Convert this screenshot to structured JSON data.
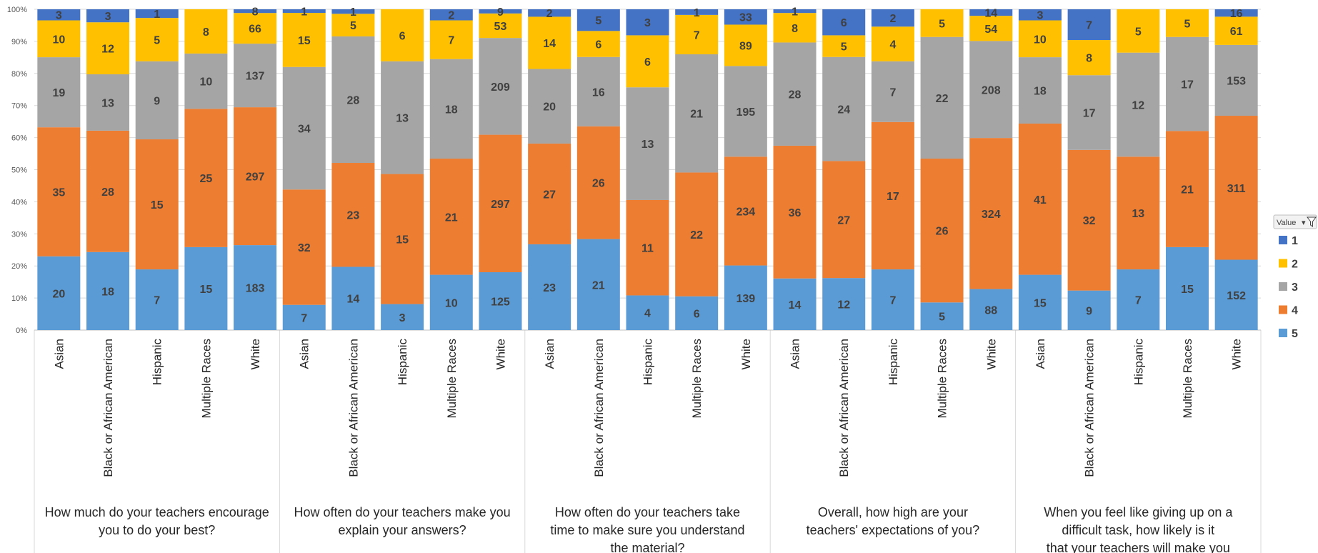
{
  "chart_data": {
    "type": "bar",
    "stacked_percent": true,
    "ylim": [
      0,
      100
    ],
    "yticks": [
      "0%",
      "10%",
      "20%",
      "30%",
      "40%",
      "50%",
      "60%",
      "70%",
      "80%",
      "90%",
      "100%"
    ],
    "grid": true,
    "legend_position": "right",
    "legend_filter_label": "Value",
    "series_order_bottom_to_top": [
      "5",
      "4",
      "3",
      "2",
      "1"
    ],
    "legend_order": [
      "1",
      "2",
      "3",
      "4",
      "5"
    ],
    "colors": {
      "1": "#4472C4",
      "2": "#FFC000",
      "3": "#A5A5A5",
      "4": "#ED7D31",
      "5": "#5B9BD5"
    },
    "groups": [
      {
        "label": "How much do your teachers encourage you to do your best?",
        "categories": [
          {
            "name": "Asian",
            "values": {
              "5": 20,
              "4": 35,
              "3": 19,
              "2": 10,
              "1": 3
            }
          },
          {
            "name": "Black or African American",
            "values": {
              "5": 18,
              "4": 28,
              "3": 13,
              "2": 12,
              "1": 3
            }
          },
          {
            "name": "Hispanic",
            "values": {
              "5": 7,
              "4": 15,
              "3": 9,
              "2": 5,
              "1": 1
            }
          },
          {
            "name": "Multiple Races",
            "values": {
              "5": 15,
              "4": 25,
              "3": 10,
              "2": 8,
              "1": 0
            }
          },
          {
            "name": "White",
            "values": {
              "5": 183,
              "4": 297,
              "3": 137,
              "2": 66,
              "1": 8
            }
          }
        ]
      },
      {
        "label": "How often do your teachers make you explain your answers?",
        "categories": [
          {
            "name": "Asian",
            "values": {
              "5": 7,
              "4": 32,
              "3": 34,
              "2": 15,
              "1": 1
            }
          },
          {
            "name": "Black or African American",
            "values": {
              "5": 14,
              "4": 23,
              "3": 28,
              "2": 5,
              "1": 1
            }
          },
          {
            "name": "Hispanic",
            "values": {
              "5": 3,
              "4": 15,
              "3": 13,
              "2": 6,
              "1": 0
            }
          },
          {
            "name": "Multiple Races",
            "values": {
              "5": 10,
              "4": 21,
              "3": 18,
              "2": 7,
              "1": 2
            }
          },
          {
            "name": "White",
            "values": {
              "5": 125,
              "4": 297,
              "3": 209,
              "2": 53,
              "1": 9
            }
          }
        ]
      },
      {
        "label": "How often do your teachers take time to make sure you understand the material?",
        "categories": [
          {
            "name": "Asian",
            "values": {
              "5": 23,
              "4": 27,
              "3": 20,
              "2": 14,
              "1": 2
            }
          },
          {
            "name": "Black or African American",
            "values": {
              "5": 21,
              "4": 26,
              "3": 16,
              "2": 6,
              "1": 5
            }
          },
          {
            "name": "Hispanic",
            "values": {
              "5": 4,
              "4": 11,
              "3": 13,
              "2": 6,
              "1": 3
            }
          },
          {
            "name": "Multiple Races",
            "values": {
              "5": 6,
              "4": 22,
              "3": 21,
              "2": 7,
              "1": 1
            }
          },
          {
            "name": "White",
            "values": {
              "5": 139,
              "4": 234,
              "3": 195,
              "2": 89,
              "1": 33
            }
          }
        ]
      },
      {
        "label": "Overall, how high are your teachers' expectations of you?",
        "categories": [
          {
            "name": "Asian",
            "values": {
              "5": 14,
              "4": 36,
              "3": 28,
              "2": 8,
              "1": 1
            }
          },
          {
            "name": "Black or African American",
            "values": {
              "5": 12,
              "4": 27,
              "3": 24,
              "2": 5,
              "1": 6
            }
          },
          {
            "name": "Hispanic",
            "values": {
              "5": 7,
              "4": 17,
              "3": 7,
              "2": 4,
              "1": 2
            }
          },
          {
            "name": "Multiple Races",
            "values": {
              "5": 5,
              "4": 26,
              "3": 22,
              "2": 5,
              "1": 0
            }
          },
          {
            "name": "White",
            "values": {
              "5": 88,
              "4": 324,
              "3": 208,
              "2": 54,
              "1": 14
            }
          }
        ]
      },
      {
        "label": "When you feel like giving up on a difficult task, how likely is it that your teachers will make you keep trying?",
        "categories": [
          {
            "name": "Asian",
            "values": {
              "5": 15,
              "4": 41,
              "3": 18,
              "2": 10,
              "1": 3
            }
          },
          {
            "name": "Black or African American",
            "values": {
              "5": 9,
              "4": 32,
              "3": 17,
              "2": 8,
              "1": 7
            }
          },
          {
            "name": "Hispanic",
            "values": {
              "5": 7,
              "4": 13,
              "3": 12,
              "2": 5,
              "1": 0
            }
          },
          {
            "name": "Multiple Races",
            "values": {
              "5": 15,
              "4": 21,
              "3": 17,
              "2": 5,
              "1": 0
            }
          },
          {
            "name": "White",
            "values": {
              "5": 152,
              "4": 311,
              "3": 153,
              "2": 61,
              "1": 16
            }
          }
        ]
      }
    ]
  }
}
